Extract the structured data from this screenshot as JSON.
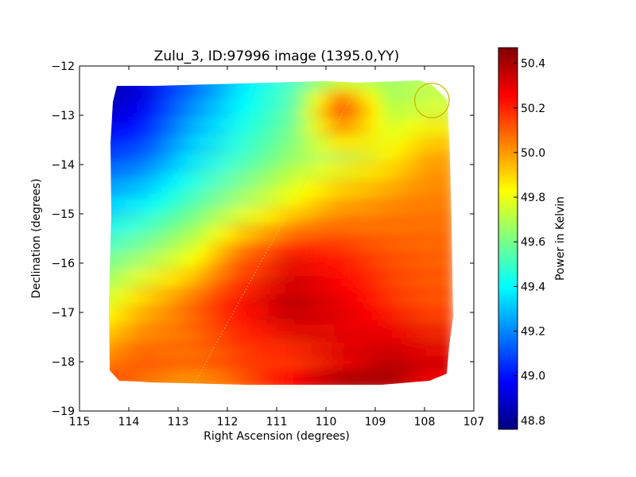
{
  "chart_data": {
    "type": "heatmap",
    "title": "Zulu_3, ID:97996 image (1395.0,YY)",
    "xlabel": "Right Ascension (degrees)",
    "ylabel": "Declination (degrees)",
    "xlim": [
      115,
      107
    ],
    "ylim": [
      -19,
      -12
    ],
    "xticks": [
      115,
      114,
      113,
      112,
      111,
      110,
      109,
      108,
      107
    ],
    "yticks": [
      -12,
      -13,
      -14,
      -15,
      -16,
      -17,
      -18,
      -19
    ],
    "xtick_labels": [
      "115",
      "114",
      "113",
      "112",
      "111",
      "110",
      "109",
      "108",
      "107"
    ],
    "ytick_labels": [
      "−12",
      "−13",
      "−14",
      "−15",
      "−16",
      "−17",
      "−18",
      "−19"
    ],
    "colorbar": {
      "label": "Power in Kelvin",
      "colormap": "jet",
      "range": [
        48.76,
        50.47
      ],
      "ticks": [
        48.8,
        49.0,
        49.2,
        49.4,
        49.6,
        49.8,
        50.0,
        50.2,
        50.4
      ],
      "tick_labels": [
        "48.8",
        "49.0",
        "49.2",
        "49.4",
        "49.6",
        "49.8",
        "50.0",
        "50.2",
        "50.4"
      ]
    },
    "map_extent": {
      "ra": [
        114.4,
        107.6
      ],
      "dec": [
        -18.45,
        -12.3
      ],
      "note": "values approximate; low in upper-left (~48.8 K), high in lower-right (~50.4 K)"
    },
    "value_grid": {
      "ra": [
        114.4,
        113.5,
        112.5,
        111.5,
        110.5,
        109.5,
        108.5,
        107.6
      ],
      "dec": [
        -12.3,
        -13.0,
        -14.0,
        -15.0,
        -16.0,
        -17.0,
        -18.0,
        -18.45
      ],
      "values": [
        [
          48.8,
          48.9,
          49.1,
          49.35,
          49.5,
          49.6,
          49.65,
          49.7
        ],
        [
          48.85,
          48.95,
          49.2,
          49.4,
          49.55,
          50.2,
          49.7,
          49.75
        ],
        [
          49.05,
          49.15,
          49.35,
          49.5,
          49.65,
          49.75,
          49.85,
          50.0
        ],
        [
          49.3,
          49.4,
          49.55,
          49.7,
          49.85,
          50.0,
          50.05,
          50.05
        ],
        [
          49.55,
          49.65,
          49.8,
          50.1,
          50.25,
          50.2,
          50.15,
          50.1
        ],
        [
          49.75,
          49.95,
          50.1,
          50.25,
          50.4,
          50.3,
          50.2,
          50.15
        ],
        [
          50.0,
          50.1,
          50.1,
          50.15,
          50.2,
          50.3,
          50.35,
          50.3
        ],
        [
          50.1,
          50.1,
          50.1,
          50.15,
          50.2,
          50.3,
          50.4,
          50.35
        ]
      ]
    },
    "annotations": [
      {
        "type": "circle",
        "center": [
          107.85,
          -12.7
        ],
        "radius_deg": 0.35,
        "color": "#c8b400"
      },
      {
        "type": "dotted-line",
        "from": [
          112.65,
          -18.4
        ],
        "to": [
          109.3,
          -12.3
        ],
        "color": "#c8e070"
      }
    ]
  }
}
